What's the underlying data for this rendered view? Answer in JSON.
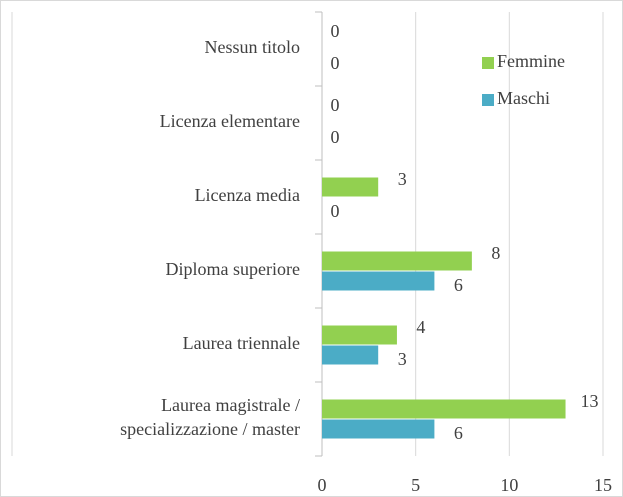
{
  "chart_data": {
    "type": "bar",
    "orientation": "horizontal",
    "categories": [
      "Nessun titolo",
      "Licenza elementare",
      "Licenza media",
      "Diploma superiore",
      "Laurea triennale",
      "Laurea magistrale /\nspecializzazione / master"
    ],
    "series": [
      {
        "name": "Femmine",
        "color": "#92d050",
        "values": [
          0,
          0,
          3,
          8,
          4,
          13
        ]
      },
      {
        "name": "Maschi",
        "color": "#4bacc6",
        "values": [
          0,
          0,
          0,
          6,
          3,
          6
        ]
      }
    ],
    "xlim": [
      0,
      15
    ],
    "xticks": [
      0,
      5,
      10,
      15
    ],
    "grid": true,
    "legend": "upper right"
  }
}
